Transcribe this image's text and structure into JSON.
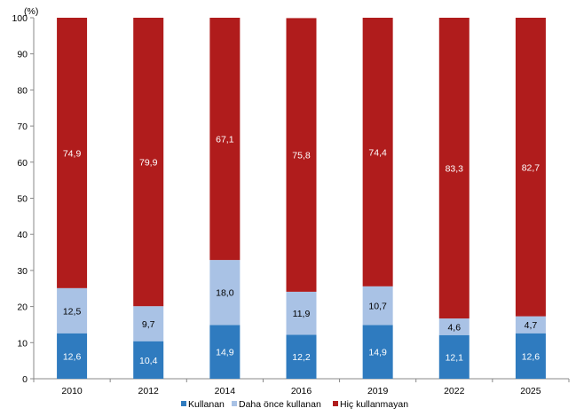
{
  "chart_data": {
    "type": "bar",
    "stacked": true,
    "title": "",
    "ylabel": "(%)",
    "xlabel": "",
    "ylim": [
      0,
      100
    ],
    "yticks": [
      0,
      10,
      20,
      30,
      40,
      50,
      60,
      70,
      80,
      90,
      100
    ],
    "grid": false,
    "legend_position": "bottom",
    "categories": [
      "2010",
      "2012",
      "2014",
      "2016",
      "2019",
      "2022",
      "2025"
    ],
    "series": [
      {
        "name": "Kullanan",
        "color": "#2f7bbf",
        "values": [
          12.6,
          10.4,
          14.9,
          12.2,
          14.9,
          12.1,
          12.6
        ],
        "labels": [
          "12,6",
          "10,4",
          "14,9",
          "12,2",
          "14,9",
          "12,1",
          "12,6"
        ]
      },
      {
        "name": "Daha önce kullanan",
        "color": "#a9c2e5",
        "values": [
          12.5,
          9.7,
          18.0,
          11.9,
          10.7,
          4.6,
          4.7
        ],
        "labels": [
          "12,5",
          "9,7",
          "18,0",
          "11,9",
          "10,7",
          "4,6",
          "4,7"
        ]
      },
      {
        "name": "Hiç kullanmayan",
        "color": "#b01c1c",
        "values": [
          74.9,
          79.9,
          67.1,
          75.8,
          74.4,
          83.3,
          82.7
        ],
        "labels": [
          "74,9",
          "79,9",
          "67,1",
          "75,8",
          "74,4",
          "83,3",
          "82,7"
        ]
      }
    ]
  }
}
